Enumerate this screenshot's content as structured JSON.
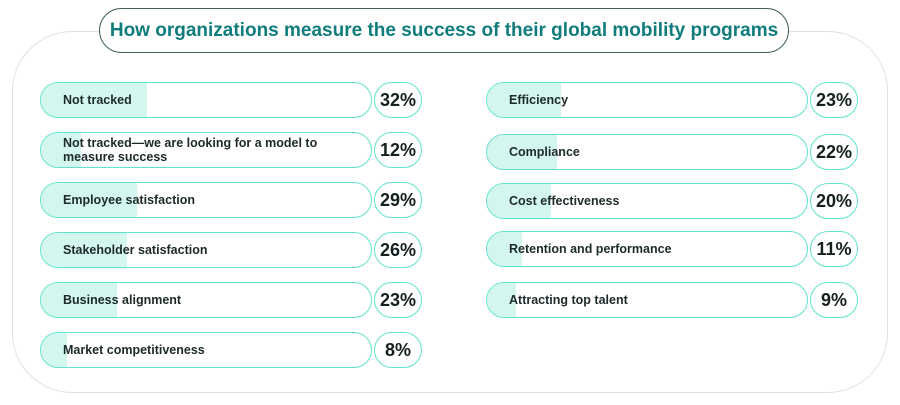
{
  "chart_data": {
    "type": "bar",
    "title": "How organizations measure the success of their global mobility programs",
    "unit": "%",
    "left_column": [
      {
        "label": "Not tracked",
        "value": 32
      },
      {
        "label": "Not tracked—we are looking for a model to measure success",
        "value": 12
      },
      {
        "label": "Employee satisfaction",
        "value": 29
      },
      {
        "label": "Stakeholder satisfaction",
        "value": 26
      },
      {
        "label": "Business alignment",
        "value": 23
      },
      {
        "label": "Market competitiveness",
        "value": 8
      }
    ],
    "right_column": [
      {
        "label": "Efficiency",
        "value": 23
      },
      {
        "label": "Compliance",
        "value": 22
      },
      {
        "label": "Cost effectiveness",
        "value": 20
      },
      {
        "label": "Retention and performance",
        "value": 11
      },
      {
        "label": "Attracting top talent",
        "value": 9
      }
    ],
    "colors": {
      "fill": "#d3f6ef",
      "border": "#62e3cc",
      "title": "#107c7c"
    }
  }
}
